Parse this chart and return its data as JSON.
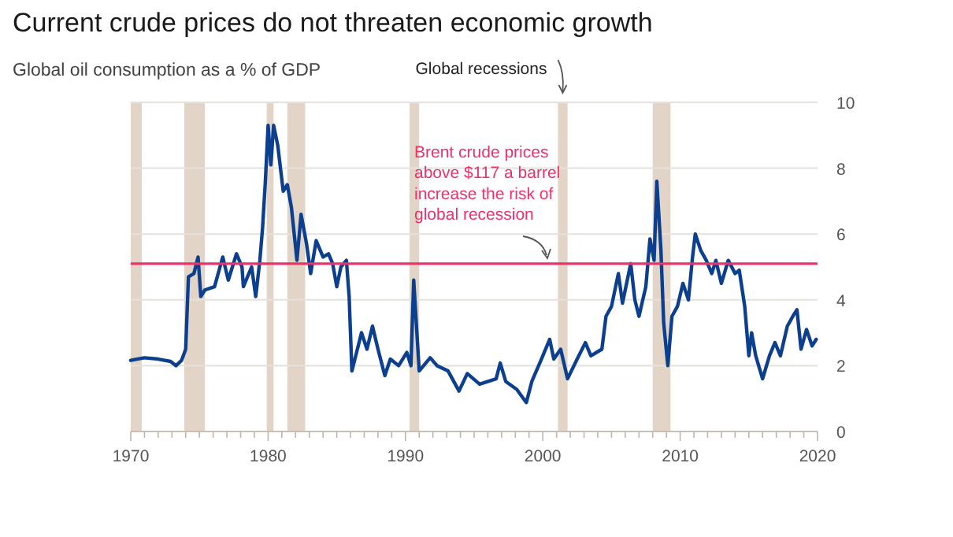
{
  "chart_data": {
    "type": "line",
    "title": "Current crude prices do not threaten economic growth",
    "subtitle": "Global oil consumption as a % of GDP",
    "xlim": [
      1970,
      2020
    ],
    "ylim": [
      0,
      10
    ],
    "yticks": [
      0,
      2,
      4,
      6,
      8,
      10
    ],
    "xticks": [
      1970,
      {
        "value": 1971,
        "label": null
      },
      {
        "value": 1972,
        "label": null
      },
      {
        "value": 1973,
        "label": null
      },
      {
        "value": 1974,
        "label": null
      },
      {
        "value": 1975,
        "label": null
      },
      {
        "value": 1976,
        "label": null
      },
      {
        "value": 1977,
        "label": null
      },
      {
        "value": 1978,
        "label": null
      },
      {
        "value": 1979,
        "label": null
      },
      1980,
      {
        "value": 1981,
        "label": null
      },
      {
        "value": 1982,
        "label": null
      },
      {
        "value": 1983,
        "label": null
      },
      {
        "value": 1984,
        "label": null
      },
      {
        "value": 1985,
        "label": null
      },
      {
        "value": 1986,
        "label": null
      },
      {
        "value": 1987,
        "label": null
      },
      {
        "value": 1988,
        "label": null
      },
      {
        "value": 1989,
        "label": null
      },
      1990,
      {
        "value": 1991,
        "label": null
      },
      {
        "value": 1992,
        "label": null
      },
      {
        "value": 1993,
        "label": null
      },
      {
        "value": 1994,
        "label": null
      },
      {
        "value": 1995,
        "label": null
      },
      {
        "value": 1996,
        "label": null
      },
      {
        "value": 1997,
        "label": null
      },
      {
        "value": 1998,
        "label": null
      },
      {
        "value": 1999,
        "label": null
      },
      2000,
      {
        "value": 2001,
        "label": null
      },
      {
        "value": 2002,
        "label": null
      },
      {
        "value": 2003,
        "label": null
      },
      {
        "value": 2004,
        "label": null
      },
      {
        "value": 2005,
        "label": null
      },
      {
        "value": 2006,
        "label": null
      },
      {
        "value": 2007,
        "label": null
      },
      {
        "value": 2008,
        "label": null
      },
      {
        "value": 2009,
        "label": null
      },
      2010,
      {
        "value": 2011,
        "label": null
      },
      {
        "value": 2012,
        "label": null
      },
      {
        "value": 2013,
        "label": null
      },
      {
        "value": 2014,
        "label": null
      },
      {
        "value": 2015,
        "label": null
      },
      {
        "value": 2016,
        "label": null
      },
      {
        "value": 2017,
        "label": null
      },
      {
        "value": 2018,
        "label": null
      },
      {
        "value": 2019,
        "label": null
      },
      2020
    ],
    "grid": "y",
    "line_style": "solid",
    "marker": "none",
    "bands": [
      {
        "axis": "x",
        "from": 1970.0,
        "to": 1970.8,
        "color": "#e2d5c8"
      },
      {
        "axis": "x",
        "from": 1973.9,
        "to": 1975.4,
        "color": "#e2d5c8"
      },
      {
        "axis": "x",
        "from": 1979.9,
        "to": 1980.4,
        "color": "#e2d5c8"
      },
      {
        "axis": "x",
        "from": 1981.4,
        "to": 1982.7,
        "color": "#e2d5c8"
      },
      {
        "axis": "x",
        "from": 1990.3,
        "to": 1991.0,
        "color": "#e2d5c8"
      },
      {
        "axis": "x",
        "from": 2001.1,
        "to": 2001.8,
        "label": "Global recessions",
        "color": "#e2d5c8"
      },
      {
        "axis": "x",
        "from": 2008.0,
        "to": 2009.3,
        "color": "#e2d5c8"
      }
    ],
    "ref_lines": [
      {
        "axis": "y",
        "value": 5.1,
        "label": "Brent crude prices\nabove $117 a barrel\nincrease the risk of\nglobal recession",
        "color": "#e8336b"
      }
    ],
    "series": [
      {
        "color": "#0d3f8f",
        "x": [
          1970.0,
          1971,
          1972,
          1972.9,
          1973.3,
          1973.7,
          1974,
          1974.2,
          1974.6,
          1974.9,
          1975.1,
          1975.4,
          1976.1,
          1976.7,
          1977.1,
          1977.7,
          1978.1,
          1978.2,
          1978.8,
          1979.1,
          1979.4,
          1979.6,
          1979.8,
          1980.0,
          1980.2,
          1980.4,
          1980.7,
          1981.1,
          1981.4,
          1981.7,
          1982.1,
          1982.4,
          1982.8,
          1983.1,
          1983.5,
          1984.0,
          1984.4,
          1984.7,
          1985.0,
          1985.3,
          1985.7,
          1985.9,
          1986.1,
          1986.5,
          1986.8,
          1987.2,
          1987.6,
          1988.0,
          1988.5,
          1988.9,
          1989.5,
          1990.1,
          1990.4,
          1990.6,
          1991.0,
          1991.8,
          1992.3,
          1993.1,
          1993.9,
          1994.5,
          1995.4,
          1996.6,
          1996.9,
          1997.3,
          1998.1,
          1998.8,
          1999.2,
          1999.9,
          2000.5,
          2000.8,
          2001.3,
          2001.8,
          2002.5,
          2003.1,
          2003.5,
          2004.3,
          2004.6,
          2005.0,
          2005.5,
          2005.8,
          2006.4,
          2006.7,
          2007.0,
          2007.5,
          2007.8,
          2008.1,
          2008.3,
          2008.6,
          2008.8,
          2009.1,
          2009.4,
          2009.8,
          2010.2,
          2010.6,
          2010.9,
          2011.1,
          2011.5,
          2011.9,
          2012.3,
          2012.6,
          2013.0,
          2013.5,
          2014.0,
          2014.3,
          2014.7,
          2015.0,
          2015.2,
          2015.5,
          2016.0,
          2016.5,
          2016.9,
          2017.3,
          2017.8,
          2018.2,
          2018.5,
          2018.8,
          2019.2,
          2019.6,
          2019.9
        ],
        "values": [
          2.16,
          2.24,
          2.2,
          2.13,
          2.0,
          2.16,
          2.5,
          4.7,
          4.8,
          5.3,
          4.1,
          4.3,
          4.4,
          5.3,
          4.6,
          5.4,
          5.0,
          4.4,
          5.0,
          4.1,
          5.2,
          6.2,
          7.6,
          9.3,
          8.1,
          9.3,
          8.7,
          7.3,
          7.5,
          6.8,
          5.2,
          6.6,
          5.7,
          4.8,
          5.8,
          5.3,
          5.4,
          5.1,
          4.4,
          5.0,
          5.2,
          4.1,
          1.84,
          2.5,
          3.0,
          2.5,
          3.2,
          2.5,
          1.7,
          2.2,
          2.0,
          2.4,
          2.0,
          4.6,
          1.84,
          2.24,
          2.0,
          1.84,
          1.23,
          1.76,
          1.44,
          1.6,
          2.08,
          1.52,
          1.28,
          0.88,
          1.52,
          2.2,
          2.8,
          2.2,
          2.5,
          1.6,
          2.2,
          2.7,
          2.3,
          2.5,
          3.5,
          3.8,
          4.8,
          3.9,
          5.1,
          4.0,
          3.5,
          4.4,
          5.85,
          5.2,
          7.6,
          5.5,
          3.3,
          2.0,
          3.5,
          3.8,
          4.5,
          4.0,
          5.3,
          6.0,
          5.5,
          5.2,
          4.8,
          5.2,
          4.5,
          5.2,
          4.8,
          4.9,
          3.8,
          2.3,
          3.0,
          2.3,
          1.6,
          2.3,
          2.7,
          2.3,
          3.2,
          3.5,
          3.7,
          2.5,
          3.1,
          2.6,
          2.8
        ]
      }
    ]
  }
}
